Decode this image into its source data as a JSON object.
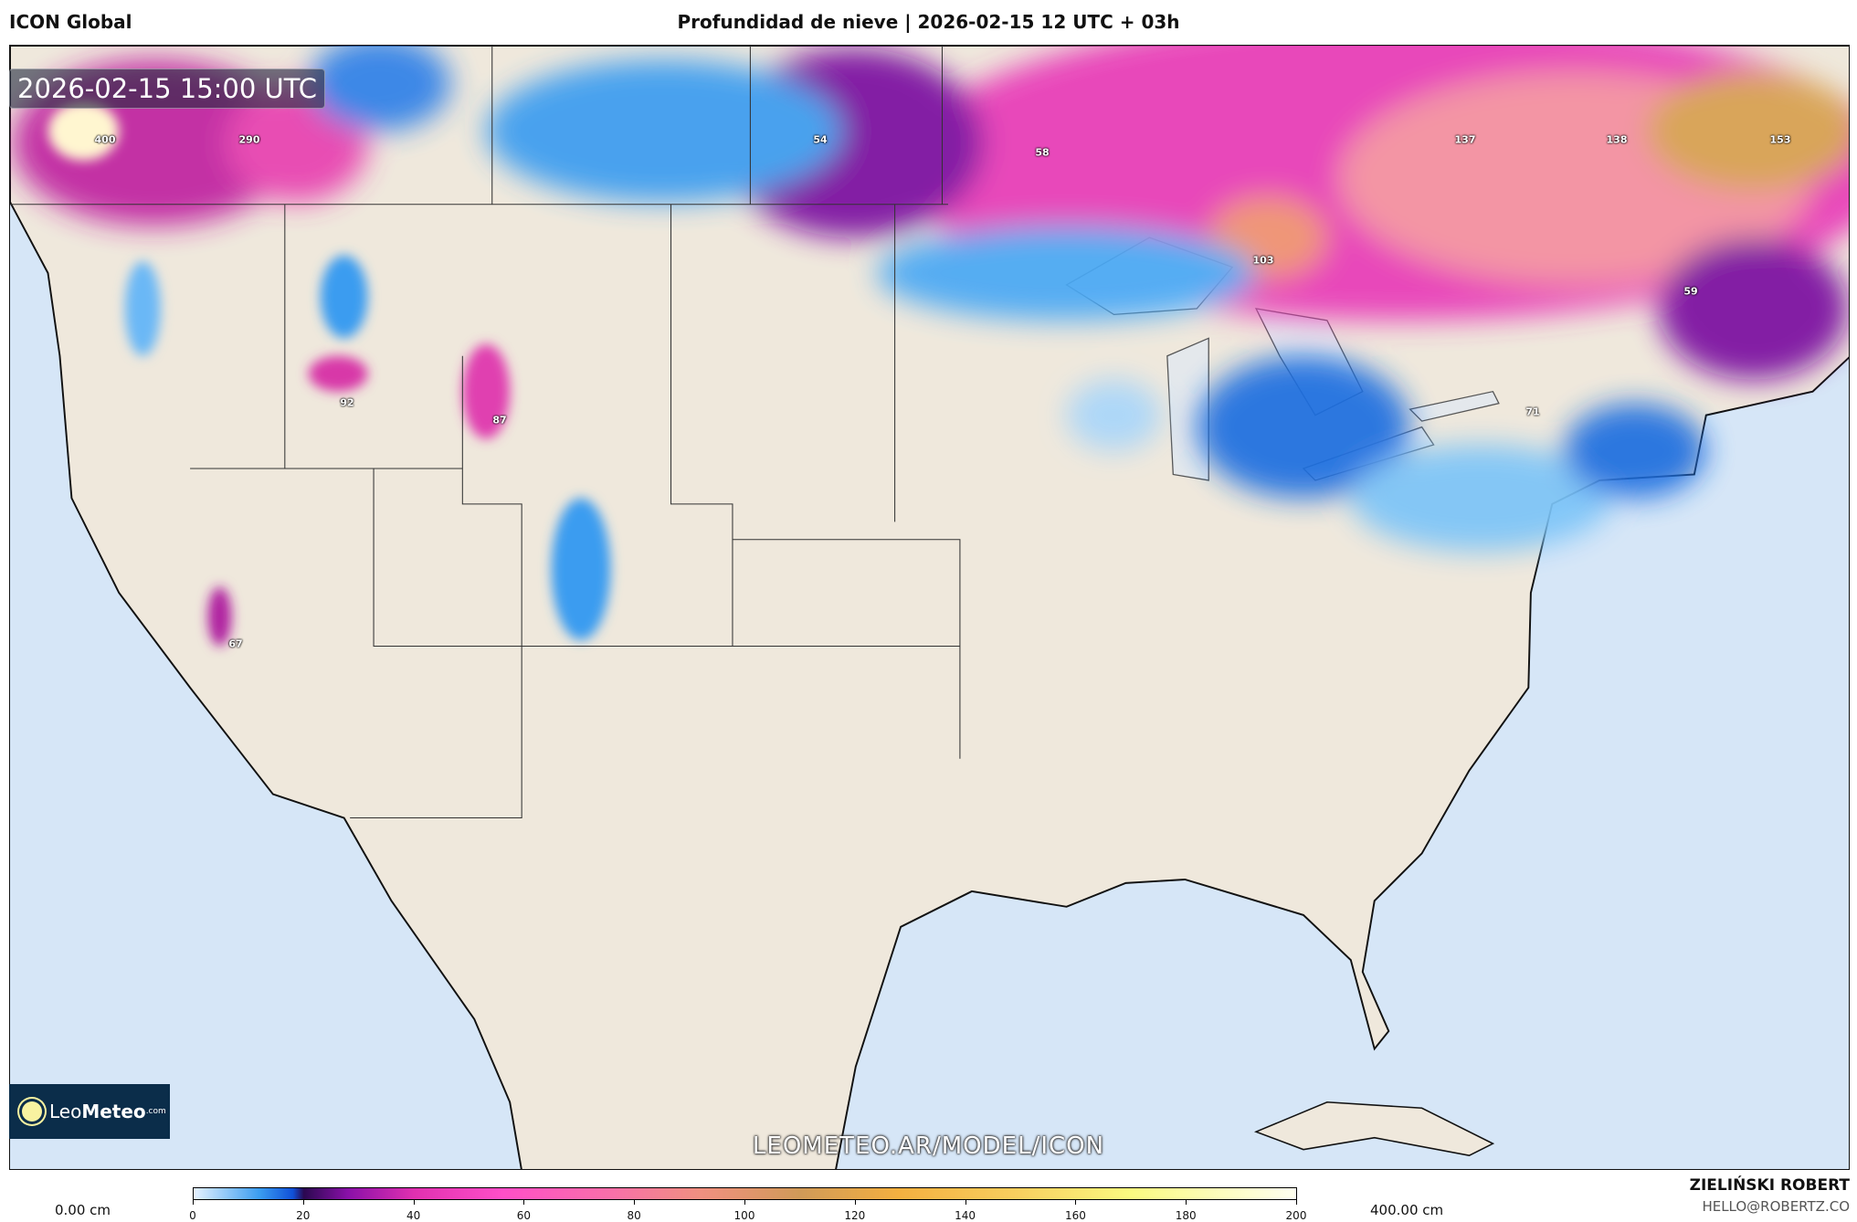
{
  "header": {
    "model": "ICON Global",
    "title": "Profundidad de nieve | 2026-02-15 12 UTC + 03h"
  },
  "map": {
    "timestamp": "2026-02-15 15:00 UTC",
    "value_labels": [
      "400",
      "290",
      "54",
      "58",
      "137",
      "138",
      "153",
      "103",
      "59",
      "92",
      "87",
      "71",
      "67"
    ],
    "watermark": "LEOMETEO.AR/MODEL/ICON",
    "colors": {
      "ocean": "#d6e6f7",
      "land": "#efe8dc",
      "snow_low": "#3a9cf0",
      "snow_mid": "#8a10a8",
      "snow_high": "#ff4fc8"
    }
  },
  "logo": {
    "name_light": "Leo",
    "name_bold": "Meteo",
    "suffix": ".com"
  },
  "legend": {
    "min_label": "0.00 cm",
    "max_label": "400.00 cm",
    "ticks": [
      "0",
      "20",
      "40",
      "60",
      "80",
      "100",
      "120",
      "140",
      "160",
      "180",
      "200"
    ]
  },
  "credits": {
    "author": "ZIELIŃSKI ROBERT",
    "email": "HELLO@ROBERTZ.CO"
  }
}
